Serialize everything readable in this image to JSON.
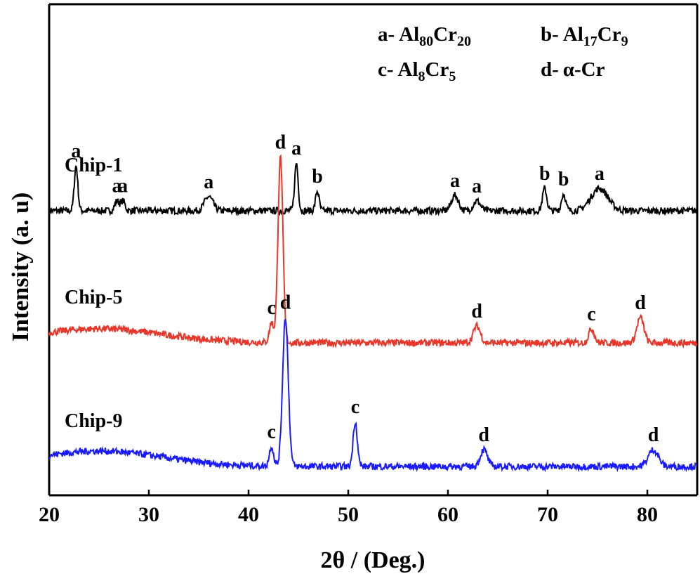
{
  "chart_data": {
    "type": "line",
    "xlabel": "2θ / (Deg.)",
    "ylabel": "Intensity (a. u)",
    "xlim": [
      20,
      85
    ],
    "x_ticks": [
      "20",
      "30",
      "40",
      "50",
      "60",
      "70",
      "80"
    ],
    "y_ticks": [],
    "legend": [
      {
        "key": "a-",
        "base": "Al",
        "sub1": "80",
        "mid": "Cr",
        "sub2": "20"
      },
      {
        "key": "b-",
        "base": "Al",
        "sub1": "17",
        "mid": "Cr",
        "sub2": "9"
      },
      {
        "key": "c-",
        "base": "Al",
        "sub1": "8",
        "mid": "Cr",
        "sub2": "5"
      },
      {
        "key": "d-",
        "base": "α-Cr",
        "sub1": "",
        "mid": "",
        "sub2": ""
      }
    ],
    "series": [
      {
        "name": "Chip-1",
        "color": "#000000",
        "baseline": 10.0,
        "noise": 0.12,
        "peaks": [
          {
            "x": 22.7,
            "h": 1.6,
            "w": 0.25,
            "label": "a"
          },
          {
            "x": 26.8,
            "h": 0.35,
            "w": 0.3,
            "label": "a"
          },
          {
            "x": 27.4,
            "h": 0.35,
            "w": 0.3,
            "label": "a"
          },
          {
            "x": 36.0,
            "h": 0.5,
            "w": 0.6,
            "label": "a"
          },
          {
            "x": 44.8,
            "h": 1.7,
            "w": 0.25,
            "label": "a"
          },
          {
            "x": 46.9,
            "h": 0.7,
            "w": 0.25,
            "label": "b"
          },
          {
            "x": 60.7,
            "h": 0.55,
            "w": 0.5,
            "label": "a"
          },
          {
            "x": 62.9,
            "h": 0.35,
            "w": 0.5,
            "label": "a"
          },
          {
            "x": 69.7,
            "h": 0.8,
            "w": 0.3,
            "label": "b"
          },
          {
            "x": 71.6,
            "h": 0.6,
            "w": 0.3,
            "label": "b"
          },
          {
            "x": 75.2,
            "h": 0.8,
            "w": 1.2,
            "label": "a"
          }
        ]
      },
      {
        "name": "Chip-5",
        "color": "#e8372a",
        "baseline": 5.3,
        "noise": 0.12,
        "hump": {
          "x": 25.0,
          "h": 0.5,
          "w": 9.0
        },
        "peaks": [
          {
            "x": 42.3,
            "h": 0.7,
            "w": 0.3,
            "label": "c"
          },
          {
            "x": 43.2,
            "h": 6.6,
            "w": 0.35,
            "label": "d"
          },
          {
            "x": 62.9,
            "h": 0.6,
            "w": 0.5,
            "label": "d"
          },
          {
            "x": 74.4,
            "h": 0.5,
            "w": 0.4,
            "label": "c"
          },
          {
            "x": 79.3,
            "h": 0.9,
            "w": 0.5,
            "label": "d"
          }
        ]
      },
      {
        "name": "Chip-9",
        "color": "#1a1aff",
        "baseline": 0.9,
        "noise": 0.12,
        "hump": {
          "x": 25.0,
          "h": 0.55,
          "w": 9.0
        },
        "peaks": [
          {
            "x": 42.3,
            "h": 0.7,
            "w": 0.3,
            "label": "c"
          },
          {
            "x": 43.7,
            "h": 5.3,
            "w": 0.4,
            "label": "d"
          },
          {
            "x": 50.7,
            "h": 1.6,
            "w": 0.3,
            "label": "c"
          },
          {
            "x": 63.6,
            "h": 0.6,
            "w": 0.5,
            "label": "d"
          },
          {
            "x": 80.6,
            "h": 0.6,
            "w": 0.7,
            "label": "d"
          }
        ]
      }
    ]
  }
}
